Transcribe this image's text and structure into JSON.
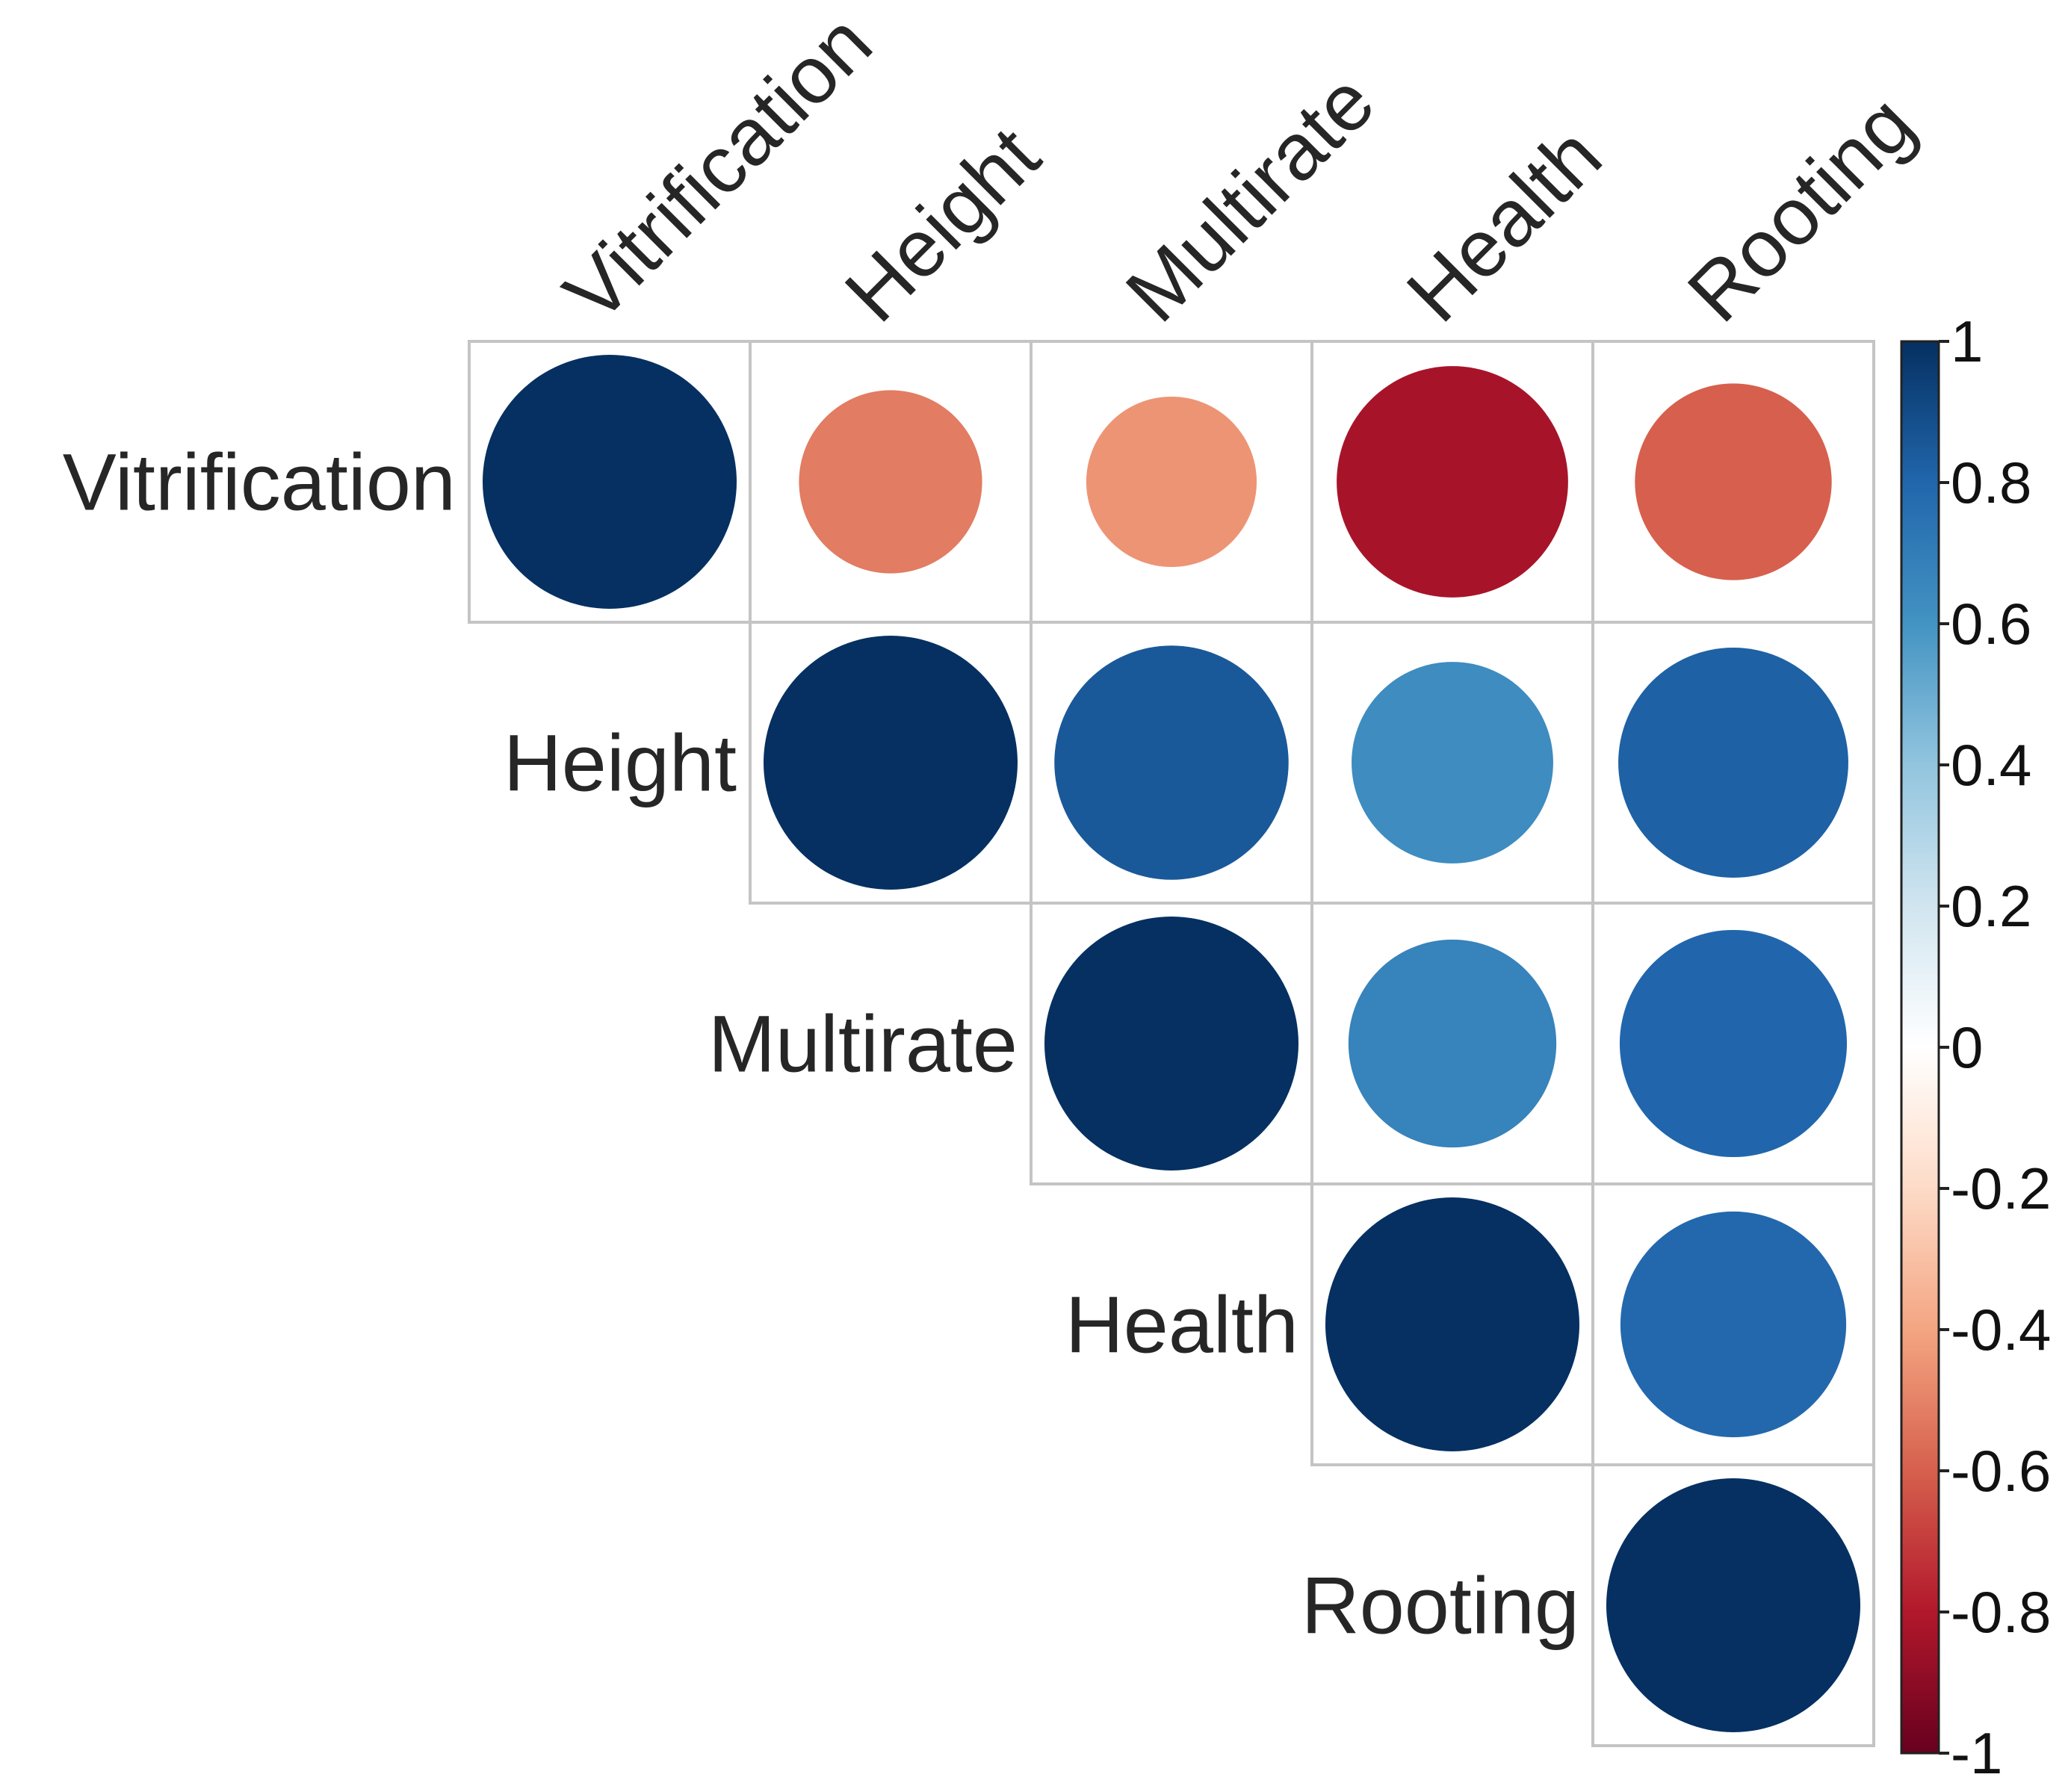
{
  "chart_data": {
    "type": "heatmap",
    "title": "",
    "variables": [
      "Vitrification",
      "Height",
      "Multirate",
      "Health",
      "Rooting"
    ],
    "matrix": [
      [
        1.0,
        -0.52,
        -0.45,
        -0.83,
        -0.6
      ],
      [
        -0.52,
        1.0,
        0.85,
        0.63,
        0.82
      ],
      [
        -0.45,
        0.85,
        1.0,
        0.67,
        0.8
      ],
      [
        -0.83,
        0.63,
        0.67,
        1.0,
        0.79
      ],
      [
        -0.6,
        0.82,
        0.8,
        0.79,
        1.0
      ]
    ],
    "layout": "upper-triangle",
    "glyph": "circle",
    "colorbar": {
      "ticks": [
        "1",
        "0.8",
        "0.6",
        "0.4",
        "0.2",
        "0",
        "-0.2",
        "-0.4",
        "-0.6",
        "-0.8",
        "-1"
      ],
      "range": [
        -1,
        1
      ],
      "palette": [
        "#67001F",
        "#B2182B",
        "#D6604D",
        "#F4A582",
        "#FDDBC7",
        "#FFFFFF",
        "#D1E5F0",
        "#92C5DE",
        "#4393C3",
        "#2166AC",
        "#053061"
      ]
    }
  }
}
